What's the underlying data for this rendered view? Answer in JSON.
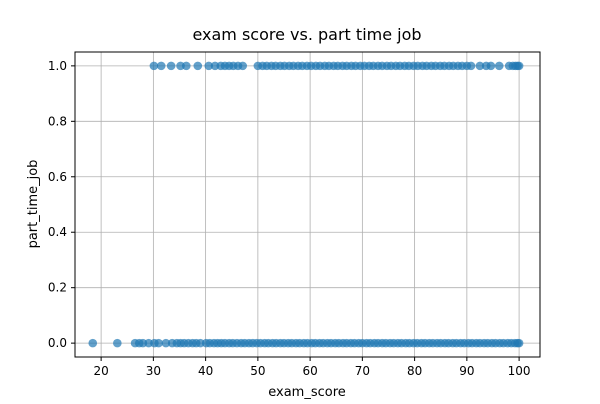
{
  "colors": {
    "marker": "#1f77b4",
    "grid": "#b0b0b0",
    "axis": "#000000",
    "background": "#ffffff"
  },
  "chart_data": {
    "type": "scatter",
    "title": "exam score vs. part time job",
    "xlabel": "exam_score",
    "ylabel": "part_time_job",
    "xlim": [
      15,
      104
    ],
    "ylim": [
      -0.05,
      1.05
    ],
    "x_ticks": [
      20,
      30,
      40,
      50,
      60,
      70,
      80,
      90,
      100
    ],
    "x_tick_labels": [
      "20",
      "30",
      "40",
      "50",
      "60",
      "70",
      "80",
      "90",
      "100"
    ],
    "y_ticks": [
      0.0,
      0.2,
      0.4,
      0.6,
      0.8,
      1.0
    ],
    "y_tick_labels": [
      "0.0",
      "0.2",
      "0.4",
      "0.6",
      "0.8",
      "1.0"
    ],
    "grid": true,
    "marker_alpha": 0.7,
    "series": [
      {
        "points": [
          [
            18.4,
            0
          ],
          [
            23.1,
            0
          ],
          [
            26.5,
            0
          ],
          [
            27.3,
            0
          ],
          [
            28.0,
            0
          ],
          [
            29.1,
            0
          ],
          [
            30.2,
            0
          ],
          [
            31.0,
            0
          ],
          [
            32.4,
            0
          ],
          [
            33.6,
            0
          ],
          [
            34.5,
            0
          ],
          [
            35.2,
            0
          ],
          [
            35.9,
            0
          ],
          [
            36.7,
            0
          ],
          [
            37.5,
            0
          ],
          [
            38.2,
            0
          ],
          [
            39.0,
            0
          ],
          [
            40.1,
            0
          ],
          [
            40.8,
            0
          ],
          [
            41.6,
            0
          ],
          [
            42.3,
            0
          ],
          [
            43.0,
            0
          ],
          [
            43.7,
            0
          ],
          [
            44.5,
            0
          ],
          [
            45.2,
            0
          ],
          [
            46.0,
            0
          ],
          [
            46.8,
            0
          ],
          [
            47.5,
            0
          ],
          [
            48.3,
            0
          ],
          [
            49.0,
            0
          ],
          [
            49.8,
            0
          ],
          [
            50.5,
            0
          ],
          [
            51.3,
            0
          ],
          [
            52.0,
            0
          ],
          [
            52.8,
            0
          ],
          [
            53.5,
            0
          ],
          [
            54.3,
            0
          ],
          [
            55.0,
            0
          ],
          [
            55.8,
            0
          ],
          [
            56.5,
            0
          ],
          [
            57.3,
            0
          ],
          [
            58.0,
            0
          ],
          [
            58.8,
            0
          ],
          [
            59.5,
            0
          ],
          [
            60.3,
            0
          ],
          [
            61.0,
            0
          ],
          [
            61.8,
            0
          ],
          [
            62.5,
            0
          ],
          [
            63.3,
            0
          ],
          [
            64.0,
            0
          ],
          [
            64.8,
            0
          ],
          [
            65.5,
            0
          ],
          [
            66.3,
            0
          ],
          [
            67.0,
            0
          ],
          [
            67.8,
            0
          ],
          [
            68.5,
            0
          ],
          [
            69.3,
            0
          ],
          [
            70.0,
            0
          ],
          [
            70.8,
            0
          ],
          [
            71.5,
            0
          ],
          [
            72.3,
            0
          ],
          [
            73.0,
            0
          ],
          [
            73.8,
            0
          ],
          [
            74.5,
            0
          ],
          [
            75.3,
            0
          ],
          [
            76.0,
            0
          ],
          [
            76.8,
            0
          ],
          [
            77.5,
            0
          ],
          [
            78.3,
            0
          ],
          [
            79.0,
            0
          ],
          [
            79.8,
            0
          ],
          [
            80.5,
            0
          ],
          [
            81.3,
            0
          ],
          [
            82.0,
            0
          ],
          [
            82.8,
            0
          ],
          [
            83.5,
            0
          ],
          [
            84.3,
            0
          ],
          [
            85.0,
            0
          ],
          [
            85.8,
            0
          ],
          [
            86.5,
            0
          ],
          [
            87.3,
            0
          ],
          [
            88.0,
            0
          ],
          [
            88.8,
            0
          ],
          [
            89.5,
            0
          ],
          [
            90.3,
            0
          ],
          [
            91.0,
            0
          ],
          [
            91.8,
            0
          ],
          [
            92.5,
            0
          ],
          [
            93.3,
            0
          ],
          [
            94.0,
            0
          ],
          [
            94.8,
            0
          ],
          [
            95.5,
            0
          ],
          [
            96.3,
            0
          ],
          [
            97.0,
            0
          ],
          [
            97.8,
            0
          ],
          [
            98.5,
            0
          ],
          [
            99.2,
            0
          ],
          [
            99.7,
            0
          ],
          [
            100.0,
            0
          ],
          [
            30.1,
            1
          ],
          [
            31.5,
            1
          ],
          [
            33.4,
            1
          ],
          [
            35.2,
            1
          ],
          [
            36.3,
            1
          ],
          [
            38.5,
            1
          ],
          [
            40.6,
            1
          ],
          [
            41.8,
            1
          ],
          [
            42.9,
            1
          ],
          [
            43.7,
            1
          ],
          [
            44.5,
            1
          ],
          [
            45.3,
            1
          ],
          [
            46.2,
            1
          ],
          [
            47.1,
            1
          ],
          [
            50.0,
            1
          ],
          [
            50.9,
            1
          ],
          [
            51.7,
            1
          ],
          [
            52.6,
            1
          ],
          [
            53.4,
            1
          ],
          [
            54.3,
            1
          ],
          [
            55.1,
            1
          ],
          [
            56.0,
            1
          ],
          [
            56.8,
            1
          ],
          [
            57.7,
            1
          ],
          [
            58.5,
            1
          ],
          [
            59.4,
            1
          ],
          [
            60.2,
            1
          ],
          [
            61.1,
            1
          ],
          [
            61.9,
            1
          ],
          [
            62.8,
            1
          ],
          [
            63.6,
            1
          ],
          [
            64.5,
            1
          ],
          [
            65.3,
            1
          ],
          [
            66.2,
            1
          ],
          [
            67.0,
            1
          ],
          [
            67.9,
            1
          ],
          [
            68.7,
            1
          ],
          [
            69.6,
            1
          ],
          [
            70.4,
            1
          ],
          [
            71.3,
            1
          ],
          [
            72.1,
            1
          ],
          [
            73.0,
            1
          ],
          [
            73.8,
            1
          ],
          [
            74.7,
            1
          ],
          [
            75.5,
            1
          ],
          [
            76.4,
            1
          ],
          [
            77.2,
            1
          ],
          [
            78.1,
            1
          ],
          [
            78.9,
            1
          ],
          [
            79.8,
            1
          ],
          [
            80.6,
            1
          ],
          [
            81.5,
            1
          ],
          [
            82.3,
            1
          ],
          [
            83.2,
            1
          ],
          [
            84.0,
            1
          ],
          [
            84.9,
            1
          ],
          [
            85.7,
            1
          ],
          [
            86.6,
            1
          ],
          [
            87.4,
            1
          ],
          [
            88.3,
            1
          ],
          [
            89.1,
            1
          ],
          [
            90.0,
            1
          ],
          [
            90.8,
            1
          ],
          [
            92.5,
            1
          ],
          [
            93.7,
            1
          ],
          [
            94.6,
            1
          ],
          [
            96.2,
            1
          ],
          [
            98.1,
            1
          ],
          [
            98.8,
            1
          ],
          [
            99.3,
            1
          ],
          [
            99.7,
            1
          ],
          [
            100.0,
            1
          ]
        ]
      }
    ]
  }
}
